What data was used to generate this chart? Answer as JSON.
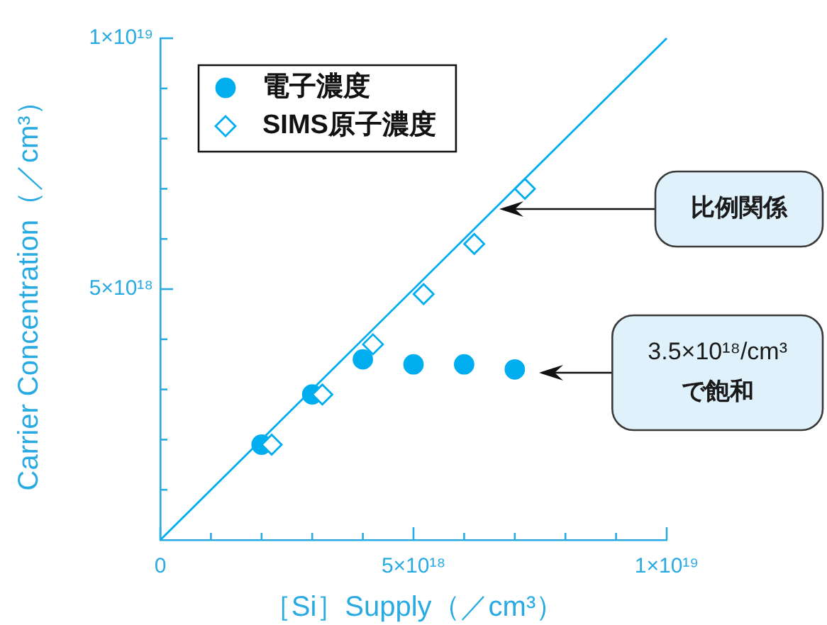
{
  "chart_data": {
    "type": "scatter",
    "xlabel": "［Si］Supply（／cm³）",
    "ylabel": "Carrier Concentration（／cm³）",
    "xlim": [
      0,
      1e+19
    ],
    "ylim": [
      0,
      1e+19
    ],
    "xticks": [
      0,
      {
        "value": 1e+18,
        "label": null
      },
      {
        "value": 2e+18,
        "label": null
      },
      {
        "value": 3e+18,
        "label": null
      },
      {
        "value": 4e+18,
        "label": null
      },
      {
        "value": 5e+18,
        "label": "5×10¹⁸"
      },
      {
        "value": 6e+18,
        "label": null
      },
      {
        "value": 7e+18,
        "label": null
      },
      {
        "value": 8e+18,
        "label": null
      },
      {
        "value": 9e+18,
        "label": null
      },
      {
        "value": 1e+19,
        "label": "1×10¹⁹"
      }
    ],
    "yticks": [
      {
        "value": 1e+18,
        "label": null
      },
      {
        "value": 2e+18,
        "label": null
      },
      {
        "value": 3e+18,
        "label": null
      },
      {
        "value": 4e+18,
        "label": null
      },
      {
        "value": 5e+18,
        "label": "5×10¹⁸"
      },
      {
        "value": 6e+18,
        "label": null
      },
      {
        "value": 7e+18,
        "label": null
      },
      {
        "value": 8e+18,
        "label": null
      },
      {
        "value": 9e+18,
        "label": null
      },
      {
        "value": 1e+19,
        "label": "1×10¹⁹"
      }
    ],
    "legend": "top left",
    "series": [
      {
        "type": "line",
        "color": "#00aeef",
        "x": [
          0,
          1e+19
        ],
        "values": [
          0,
          1e+19
        ]
      },
      {
        "name": "電子濃度",
        "color": "#00aeef",
        "marker": "circle",
        "x": [
          2e+18,
          3e+18,
          4e+18,
          5e+18,
          6e+18,
          7e+18
        ],
        "values": [
          1.9e+18,
          2.9e+18,
          3.6e+18,
          3.5e+18,
          3.5e+18,
          3.4e+18
        ]
      },
      {
        "name": "SIMS原子濃度",
        "color": "#00aeef",
        "marker": "diamond",
        "x": [
          2.2e+18,
          3.2e+18,
          4.2e+18,
          5.2e+18,
          6.2e+18,
          7.2e+18
        ],
        "values": [
          1.9e+18,
          2.9e+18,
          3.9e+18,
          4.9e+18,
          5.9e+18,
          7e+18
        ]
      }
    ],
    "annotations": [
      "比例関係",
      "3.5×10¹⁸/cm³\nで飽和"
    ]
  }
}
